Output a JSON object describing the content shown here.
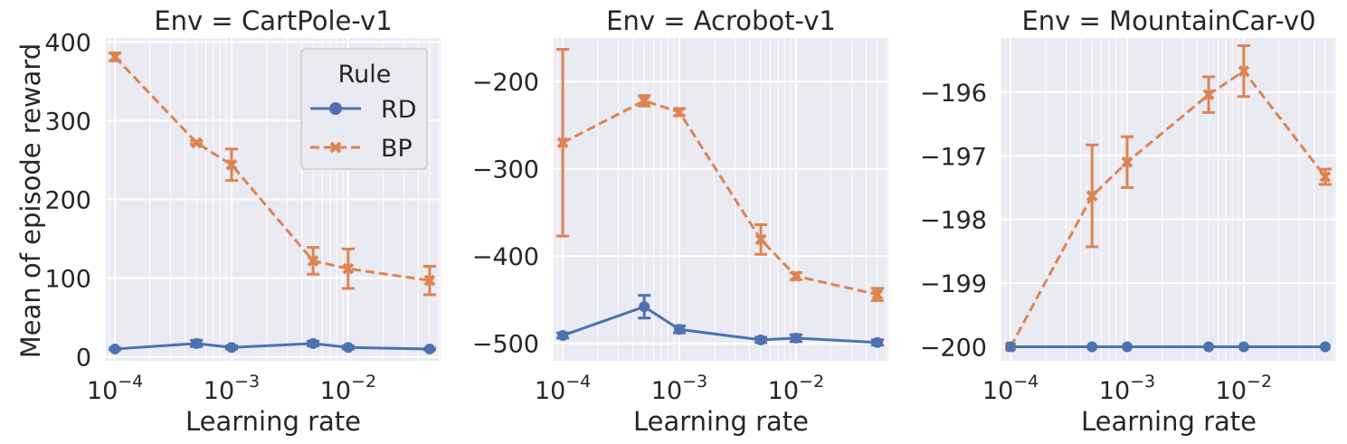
{
  "figure": {
    "ylabel": "Mean of episode reward",
    "legend": {
      "title": "Rule",
      "entries": [
        {
          "label": "RD",
          "color": "#4c72b0",
          "marker": "circle",
          "dash": "solid"
        },
        {
          "label": "BP",
          "color": "#dd8452",
          "marker": "x",
          "dash": "dashed"
        }
      ],
      "placement": "upper-right of first panel"
    },
    "background": "#eaeaf2",
    "grid": "white, log-minor"
  },
  "chart_data": [
    {
      "type": "line",
      "title": "Env = CartPole-v1",
      "xlabel": "Learning rate",
      "ylabel": "Mean of episode reward",
      "xscale": "log",
      "x": [
        0.0001,
        0.0005,
        0.001,
        0.005,
        0.01,
        0.05
      ],
      "xticks": [
        "10^-4",
        "10^-3",
        "10^-2"
      ],
      "yticks": [
        0,
        100,
        200,
        300,
        400
      ],
      "ylim": [
        -5,
        405
      ],
      "series": [
        {
          "name": "RD",
          "color": "#4c72b0",
          "values": [
            10,
            17,
            12,
            17,
            12,
            10
          ],
          "err": [
            1,
            4,
            2,
            3,
            2,
            1
          ]
        },
        {
          "name": "BP",
          "color": "#dd8452",
          "values": [
            381,
            272,
            244,
            122,
            112,
            97
          ],
          "err": [
            5,
            2,
            20,
            17,
            25,
            18
          ]
        }
      ]
    },
    {
      "type": "line",
      "title": "Env = Acrobot-v1",
      "xlabel": "Learning rate",
      "xscale": "log",
      "x": [
        0.0001,
        0.0005,
        0.001,
        0.005,
        0.01,
        0.05
      ],
      "xticks": [
        "10^-4",
        "10^-3",
        "10^-2"
      ],
      "yticks": [
        -500,
        -400,
        -300,
        -200
      ],
      "ylim": [
        -520,
        -150
      ],
      "series": [
        {
          "name": "RD",
          "color": "#4c72b0",
          "values": [
            -491,
            -458,
            -484,
            -496,
            -494,
            -499
          ],
          "err": [
            3,
            13,
            4,
            3,
            4,
            3
          ]
        },
        {
          "name": "BP",
          "color": "#dd8452",
          "values": [
            -270,
            -222,
            -235,
            -381,
            -423,
            -444
          ],
          "err": [
            107,
            6,
            4,
            17,
            4,
            7
          ]
        }
      ]
    },
    {
      "type": "line",
      "title": "Env = MountainCar-v0",
      "xlabel": "Learning rate",
      "xscale": "log",
      "x": [
        0.0001,
        0.0005,
        0.001,
        0.005,
        0.01,
        0.05
      ],
      "xticks": [
        "10^-4",
        "10^-3",
        "10^-2"
      ],
      "yticks": [
        -200,
        -199,
        -198,
        -197,
        -196
      ],
      "ylim": [
        -200.22,
        -195.15
      ],
      "series": [
        {
          "name": "RD",
          "color": "#4c72b0",
          "values": [
            -200,
            -200,
            -200,
            -200,
            -200,
            -200
          ],
          "err": [
            0,
            0,
            0,
            0,
            0,
            0
          ]
        },
        {
          "name": "BP",
          "color": "#dd8452",
          "values": [
            -200,
            -197.63,
            -197.1,
            -196.04,
            -195.67,
            -197.33
          ],
          "err": [
            0,
            0.8,
            0.4,
            0.28,
            0.4,
            0.12
          ]
        }
      ]
    }
  ]
}
